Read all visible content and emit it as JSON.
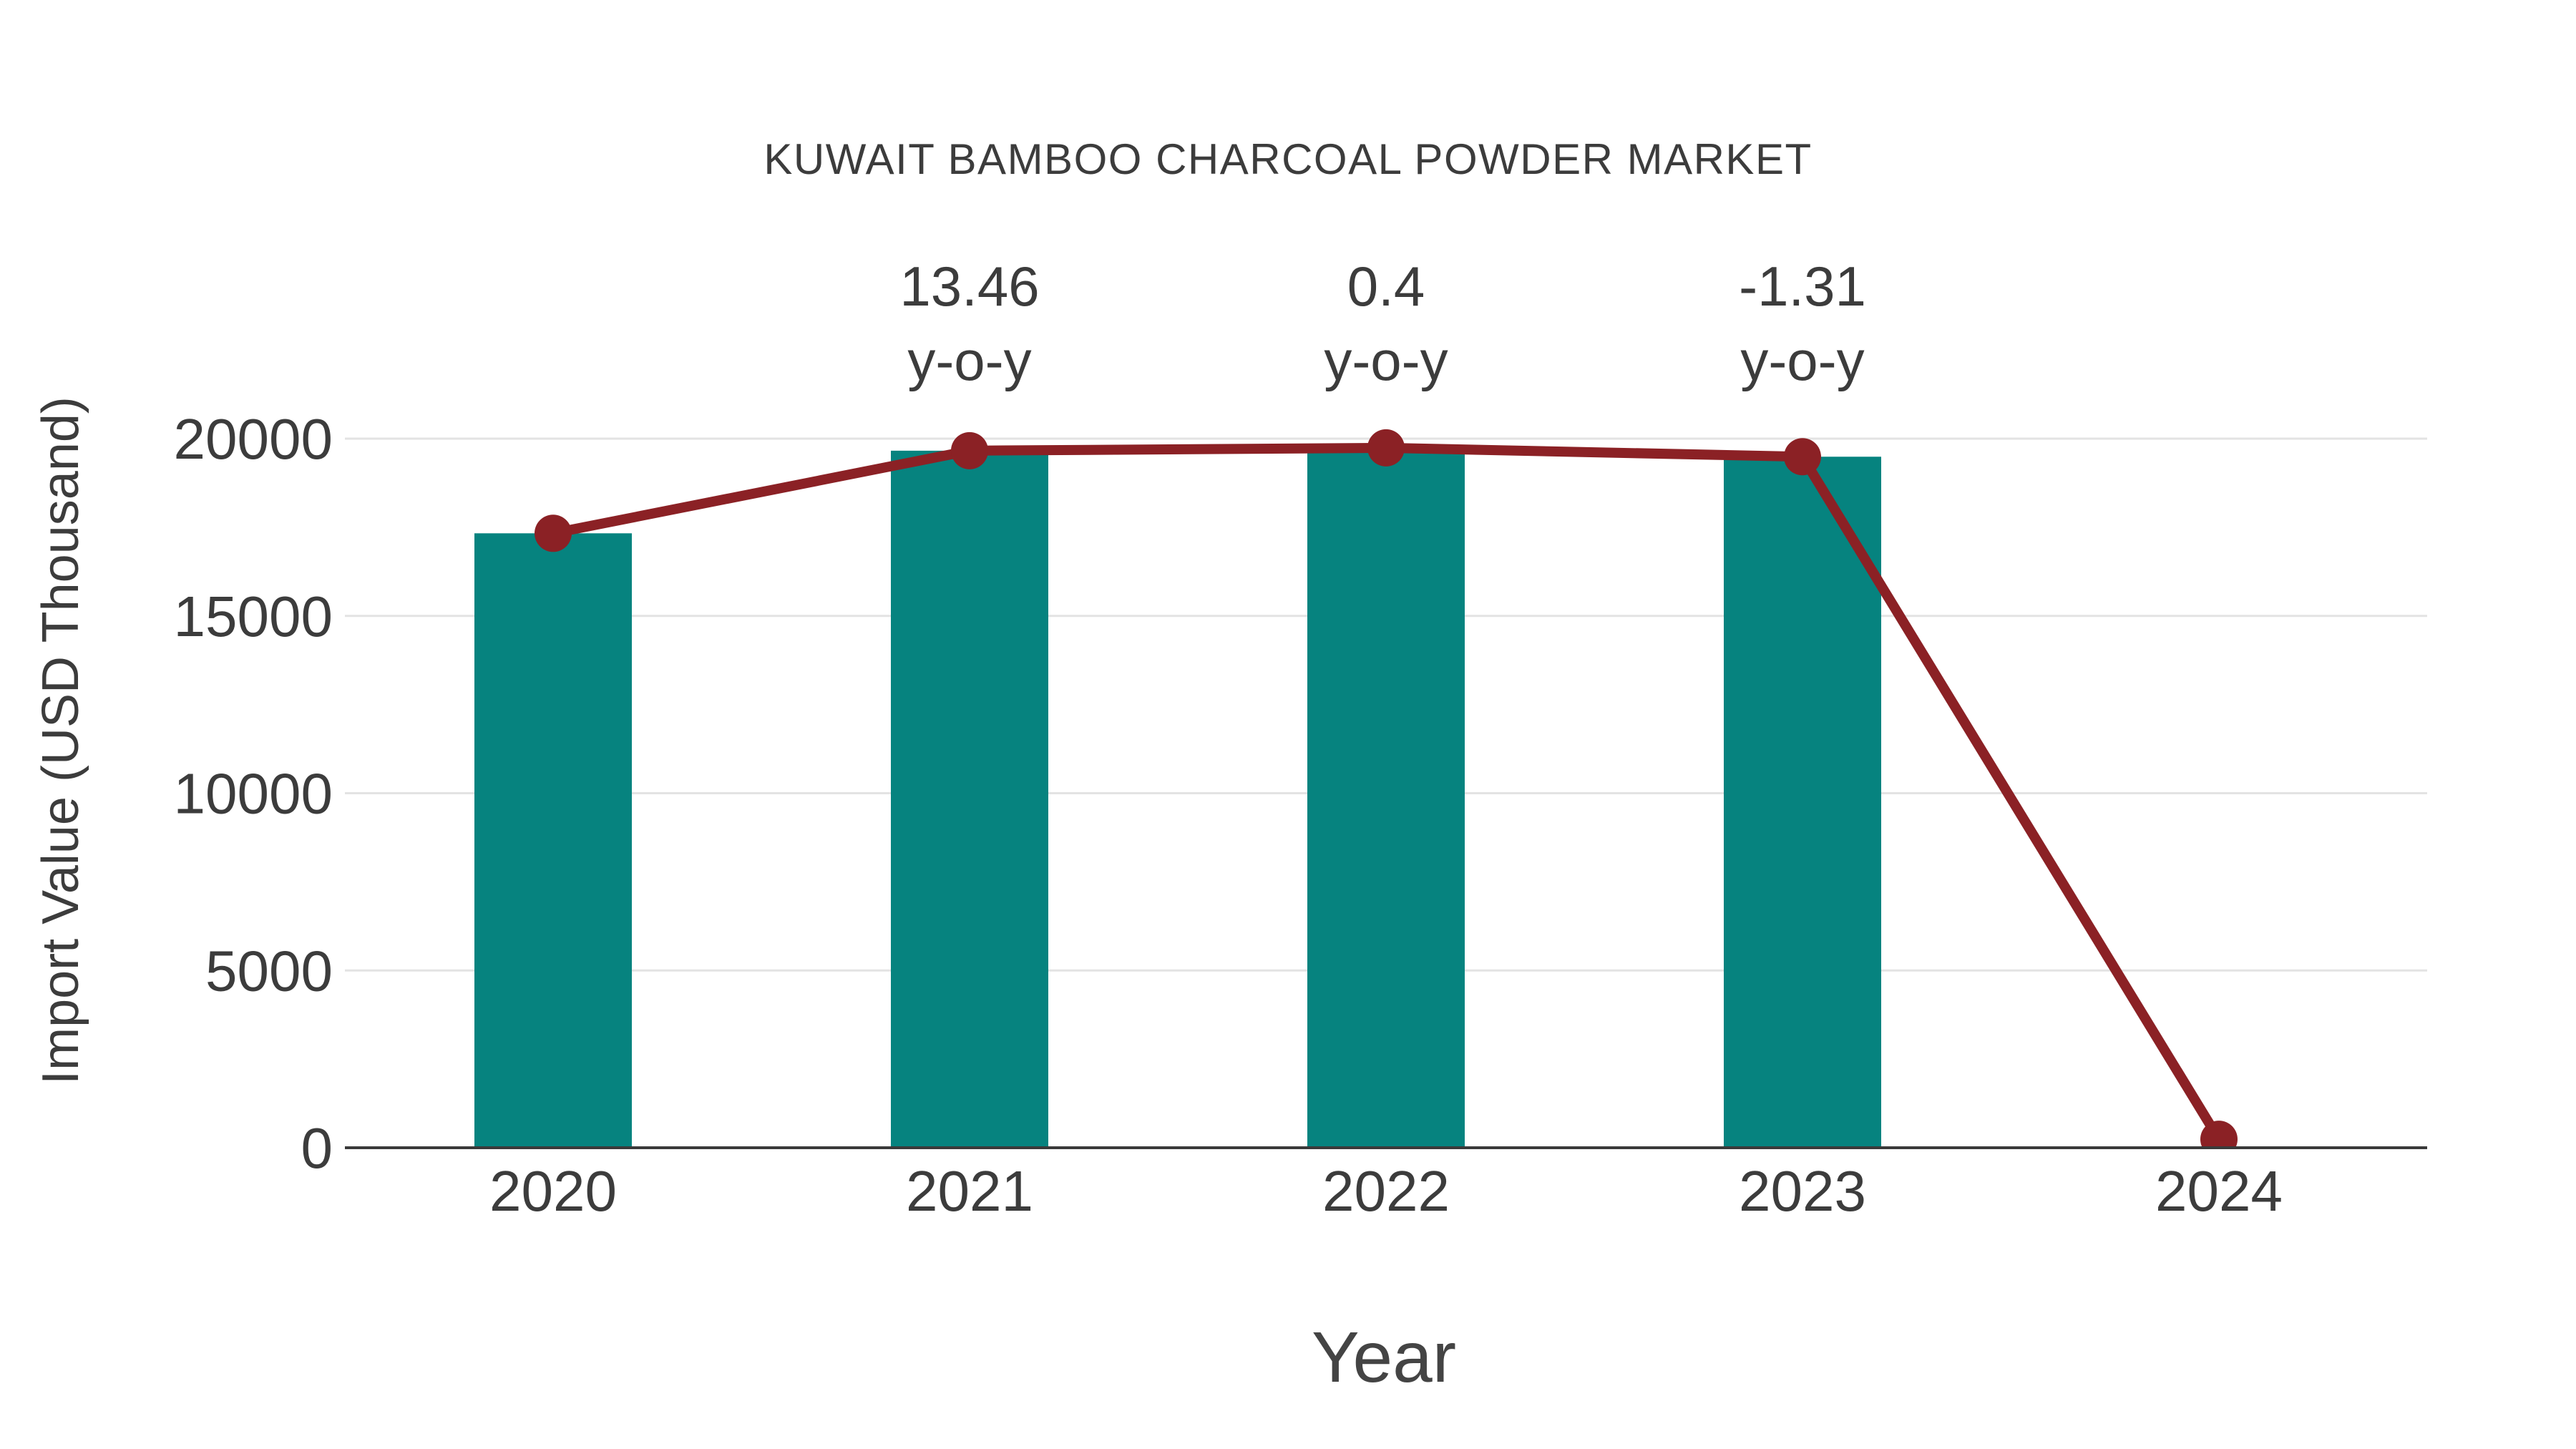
{
  "chart_data": {
    "type": "bar+line",
    "title": "KUWAIT BAMBOO CHARCOAL POWDER MARKET",
    "xlabel": "Year",
    "ylabel": "Import Value (USD Thousand)",
    "categories": [
      "2020",
      "2021",
      "2022",
      "2023",
      "2024"
    ],
    "series": [
      {
        "name": "Import Value bars",
        "type": "bar",
        "color": "#06837F",
        "values": [
          17330,
          19660,
          19740,
          19490,
          null
        ]
      },
      {
        "name": "Import Value trend line",
        "type": "line",
        "color": "#8B2125",
        "marker": "circle",
        "values": [
          17330,
          19660,
          19740,
          19490,
          240
        ]
      }
    ],
    "annotations": [
      {
        "category": "2021",
        "line1": "13.46",
        "line2": "y-o-y"
      },
      {
        "category": "2022",
        "line1": "0.4",
        "line2": "y-o-y"
      },
      {
        "category": "2023",
        "line1": "-1.31",
        "line2": "y-o-y"
      }
    ],
    "yticks": [
      0,
      5000,
      10000,
      15000,
      20000
    ],
    "ylim": [
      0,
      20000
    ],
    "grid": true,
    "legend": "none",
    "colors": {
      "bar": "#06837F",
      "line": "#8B2125",
      "marker": "#8B2125",
      "grid": "#E3E3E3",
      "axis": "#3A3A3A",
      "text": "#3C3C3C"
    }
  }
}
